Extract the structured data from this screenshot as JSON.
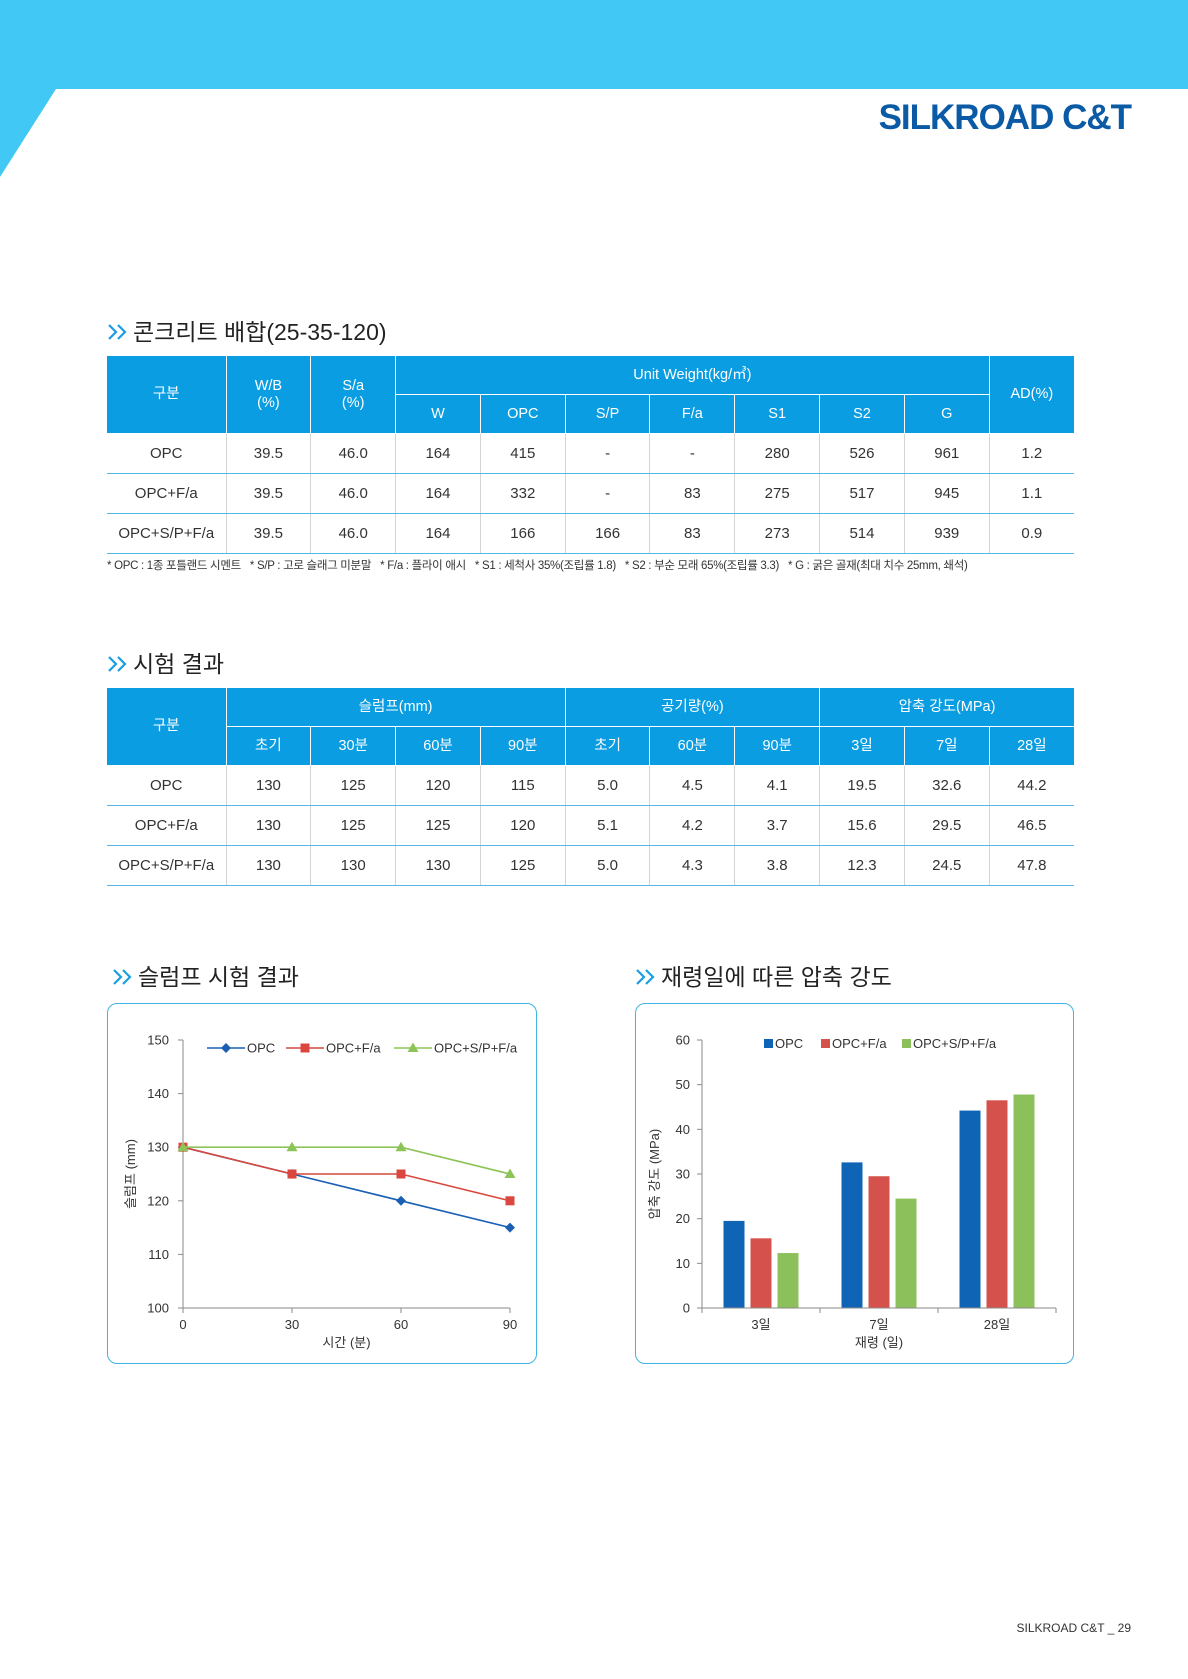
{
  "brand": {
    "name": "SILKROAD C&T",
    "colors": {
      "banner": "#42c8f4",
      "brand_text": "#0b5aa5",
      "table_header": "#0b9de1",
      "accent": "#1a9ee3"
    }
  },
  "mix_section": {
    "title": "콘크리트 배합(25-35-120)",
    "table": {
      "headers": {
        "category": "구분",
        "wb": "W/B",
        "wb_unit": "(%)",
        "sa": "S/a",
        "sa_unit": "(%)",
        "unit_weight": "Unit Weight(kg/㎥)",
        "sub": [
          "W",
          "OPC",
          "S/P",
          "F/a",
          "S1",
          "S2",
          "G"
        ],
        "ad": "AD(%)"
      },
      "rows": [
        {
          "label": "OPC",
          "values": [
            "39.5",
            "46.0",
            "164",
            "415",
            "-",
            "-",
            "280",
            "526",
            "961",
            "1.2"
          ]
        },
        {
          "label": "OPC+F/a",
          "values": [
            "39.5",
            "46.0",
            "164",
            "332",
            "-",
            "83",
            "275",
            "517",
            "945",
            "1.1"
          ]
        },
        {
          "label": "OPC+S/P+F/a",
          "values": [
            "39.5",
            "46.0",
            "164",
            "166",
            "166",
            "83",
            "273",
            "514",
            "939",
            "0.9"
          ]
        }
      ]
    },
    "footnotes": [
      "* OPC : 1종 포틀랜드 시멘트",
      "* S/P : 고로 슬래그 미분말",
      "* F/a : 플라이 애시",
      "* S1 : 세척사 35%(조립률 1.8)",
      "* S2 : 부순 모래 65%(조립률 3.3)",
      "* G : 굵은 골재(최대 치수 25mm, 쇄석)"
    ]
  },
  "results_section": {
    "title": "시험 결과",
    "table": {
      "headers": {
        "category": "구분",
        "groups": [
          "슬럼프(mm)",
          "공기량(%)",
          "압축 강도(MPa)"
        ],
        "sub": [
          "초기",
          "30분",
          "60분",
          "90분",
          "초기",
          "60분",
          "90분",
          "3일",
          "7일",
          "28일"
        ]
      },
      "rows": [
        {
          "label": "OPC",
          "values": [
            "130",
            "125",
            "120",
            "115",
            "5.0",
            "4.5",
            "4.1",
            "19.5",
            "32.6",
            "44.2"
          ]
        },
        {
          "label": "OPC+F/a",
          "values": [
            "130",
            "125",
            "125",
            "120",
            "5.1",
            "4.2",
            "3.7",
            "15.6",
            "29.5",
            "46.5"
          ]
        },
        {
          "label": "OPC+S/P+F/a",
          "values": [
            "130",
            "130",
            "130",
            "125",
            "5.0",
            "4.3",
            "3.8",
            "12.3",
            "24.5",
            "47.8"
          ]
        }
      ]
    }
  },
  "slump_chart": {
    "title": "슬럼프 시험 결과"
  },
  "strength_chart": {
    "title": "재령일에 따른 압축 강도"
  },
  "chart_data": [
    {
      "type": "line",
      "x": [
        0,
        30,
        60,
        90
      ],
      "series": [
        {
          "name": "OPC",
          "values": [
            130,
            125,
            120,
            115
          ],
          "color": "#1a5fb4",
          "marker": "diamond"
        },
        {
          "name": "OPC+F/a",
          "values": [
            130,
            125,
            125,
            120
          ],
          "color": "#d9473f",
          "marker": "square"
        },
        {
          "name": "OPC+S/P+F/a",
          "values": [
            130,
            130,
            130,
            125
          ],
          "color": "#8dc457",
          "marker": "triangle"
        }
      ],
      "xlabel": "시간 (분)",
      "ylabel": "슬럼프 (mm)",
      "xlim": [
        0,
        90
      ],
      "ylim": [
        100,
        150
      ],
      "yticks": [
        100,
        110,
        120,
        130,
        140,
        150
      ],
      "grid": false,
      "legend": "top"
    },
    {
      "type": "bar",
      "categories": [
        "3일",
        "7일",
        "28일"
      ],
      "series": [
        {
          "name": "OPC",
          "values": [
            19.5,
            32.6,
            44.2
          ],
          "color": "#0f64b6"
        },
        {
          "name": "OPC+F/a",
          "values": [
            15.6,
            29.5,
            46.5
          ],
          "color": "#d5524c"
        },
        {
          "name": "OPC+S/P+F/a",
          "values": [
            12.3,
            24.5,
            47.8
          ],
          "color": "#8bc05b"
        }
      ],
      "xlabel": "재령 (일)",
      "ylabel": "압축 강도 (MPa)",
      "ylim": [
        0,
        60
      ],
      "yticks": [
        0,
        10,
        20,
        30,
        40,
        50,
        60
      ],
      "grid": false,
      "legend": "top"
    }
  ],
  "footer": {
    "page_label": "SILKROAD C&T _ 29"
  }
}
